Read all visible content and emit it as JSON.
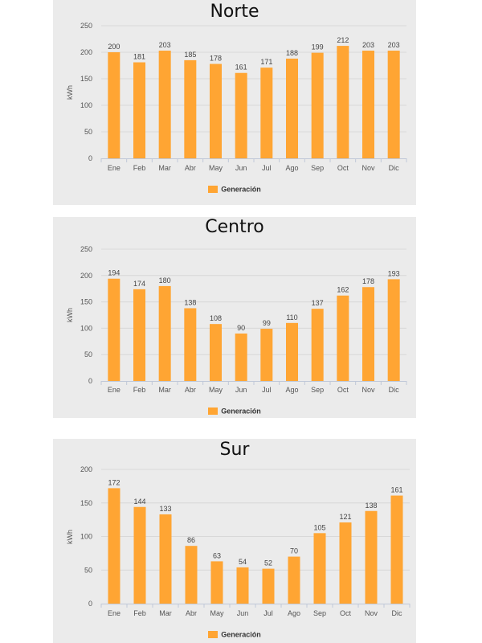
{
  "legend_label": "Generación",
  "colors": {
    "bar": "#ffa533",
    "grid": "#d8d8d8",
    "axis_text": "#555555",
    "panel": "#ebebeb"
  },
  "chart_data": [
    {
      "type": "bar",
      "title": "Norte",
      "ylabel": "kWh",
      "ylim": [
        0,
        250
      ],
      "yticks": [
        0,
        50,
        100,
        150,
        200,
        250
      ],
      "categories": [
        "Ene",
        "Feb",
        "Mar",
        "Abr",
        "May",
        "Jun",
        "Jul",
        "Ago",
        "Sep",
        "Oct",
        "Nov",
        "Dic"
      ],
      "series": [
        {
          "name": "Generación",
          "values": [
            200,
            181,
            203,
            185,
            178,
            161,
            171,
            188,
            199,
            212,
            203,
            203
          ]
        }
      ],
      "grid": true,
      "legend": "bottom-center"
    },
    {
      "type": "bar",
      "title": "Centro",
      "ylabel": "kWh",
      "ylim": [
        0,
        250
      ],
      "yticks": [
        0,
        50,
        100,
        150,
        200,
        250
      ],
      "categories": [
        "Ene",
        "Feb",
        "Mar",
        "Abr",
        "May",
        "Jun",
        "Jul",
        "Ago",
        "Sep",
        "Oct",
        "Nov",
        "Dic"
      ],
      "series": [
        {
          "name": "Generación",
          "values": [
            194,
            174,
            180,
            138,
            108,
            90,
            99,
            110,
            137,
            162,
            178,
            193
          ]
        }
      ],
      "grid": true,
      "legend": "bottom-center"
    },
    {
      "type": "bar",
      "title": "Sur",
      "ylabel": "kWh",
      "ylim": [
        0,
        200
      ],
      "yticks": [
        0,
        50,
        100,
        150,
        200
      ],
      "categories": [
        "Ene",
        "Feb",
        "Mar",
        "Abr",
        "May",
        "Jun",
        "Jul",
        "Ago",
        "Sep",
        "Oct",
        "Nov",
        "Dic"
      ],
      "series": [
        {
          "name": "Generación",
          "values": [
            172,
            144,
            133,
            86,
            63,
            54,
            52,
            70,
            105,
            121,
            138,
            161
          ]
        }
      ],
      "grid": true,
      "legend": "bottom-center"
    }
  ]
}
